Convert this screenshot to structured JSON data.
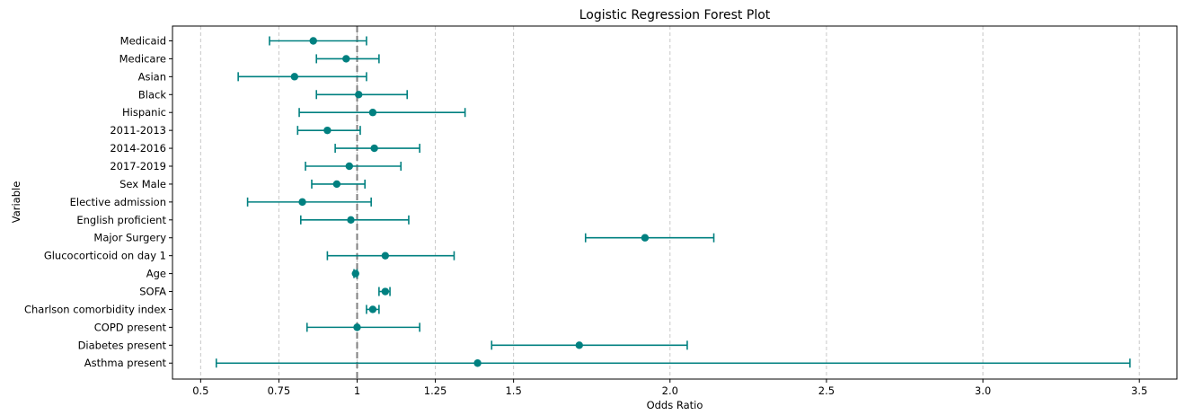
{
  "chart_data": {
    "type": "forest",
    "title": "Logistic Regression Forest Plot",
    "xlabel": "Odds Ratio",
    "ylabel": "Variable",
    "xlim": [
      0.41,
      3.62
    ],
    "xticks": [
      0.5,
      0.75,
      1,
      1.25,
      1.5,
      2.0,
      2.5,
      3.0,
      3.5
    ],
    "xtick_labels": [
      "0.5",
      "0.75",
      "1",
      "1.25",
      "1.5",
      "2.0",
      "2.5",
      "3.0",
      "3.5"
    ],
    "grid": "x-dashed",
    "reference_line": 1.0,
    "marker_color": "#008080",
    "reference_color": "#808080",
    "rows": [
      {
        "label": "Medicaid",
        "or": 0.86,
        "lower": 0.72,
        "upper": 1.03
      },
      {
        "label": "Medicare",
        "or": 0.965,
        "lower": 0.87,
        "upper": 1.07
      },
      {
        "label": "Asian",
        "or": 0.8,
        "lower": 0.62,
        "upper": 1.03
      },
      {
        "label": "Black",
        "or": 1.005,
        "lower": 0.87,
        "upper": 1.16
      },
      {
        "label": "Hispanic",
        "or": 1.05,
        "lower": 0.815,
        "upper": 1.345
      },
      {
        "label": "2011-2013",
        "or": 0.905,
        "lower": 0.81,
        "upper": 1.01
      },
      {
        "label": "2014-2016",
        "or": 1.055,
        "lower": 0.93,
        "upper": 1.2
      },
      {
        "label": "2017-2019",
        "or": 0.975,
        "lower": 0.835,
        "upper": 1.14
      },
      {
        "label": "Sex Male",
        "or": 0.935,
        "lower": 0.855,
        "upper": 1.025
      },
      {
        "label": "Elective admission",
        "or": 0.825,
        "lower": 0.65,
        "upper": 1.045
      },
      {
        "label": "English proficient",
        "or": 0.98,
        "lower": 0.82,
        "upper": 1.165
      },
      {
        "label": "Major Surgery",
        "or": 1.92,
        "lower": 1.73,
        "upper": 2.14
      },
      {
        "label": "Glucocorticoid on day 1",
        "or": 1.09,
        "lower": 0.905,
        "upper": 1.31
      },
      {
        "label": "Age",
        "or": 0.995,
        "lower": 0.99,
        "upper": 1.0
      },
      {
        "label": "SOFA",
        "or": 1.09,
        "lower": 1.07,
        "upper": 1.105
      },
      {
        "label": "Charlson comorbidity index",
        "or": 1.05,
        "lower": 1.03,
        "upper": 1.07
      },
      {
        "label": "COPD present",
        "or": 1.0,
        "lower": 0.84,
        "upper": 1.2
      },
      {
        "label": "Diabetes present",
        "or": 1.71,
        "lower": 1.43,
        "upper": 2.055
      },
      {
        "label": "Asthma present",
        "or": 1.385,
        "lower": 0.55,
        "upper": 3.47
      }
    ]
  }
}
